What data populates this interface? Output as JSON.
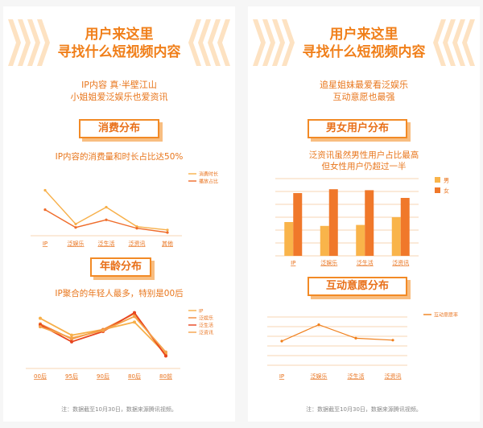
{
  "left": {
    "headline_1": "用户来这里",
    "headline_2": "寻找什么短视频内容",
    "subtitle_1": "IP内容 真·半壁江山",
    "subtitle_2": "小姐姐爱泛娱乐也爱资讯",
    "consumption": {
      "section_title": "消费分布",
      "caption": "IP内容的消费量和时长占比达50%"
    },
    "age": {
      "section_title": "年龄分布",
      "caption": "IP聚合的年轻人最多，特别是00后"
    },
    "note": "注：数据截至10月30日，数据来源腾讯视频。"
  },
  "right": {
    "headline_1": "用户来这里",
    "headline_2": "寻找什么短视频内容",
    "subtitle_1": "追星姐妹最爱看泛娱乐",
    "subtitle_2": "互动意愿也最强",
    "gender": {
      "section_title": "男女用户分布",
      "caption_1": "泛资讯虽然男性用户占比最高",
      "caption_2": "但女性用户仍超过一半"
    },
    "interaction": {
      "section_title": "互动意愿分布"
    },
    "note": "注：数据截至10月30日，数据来源腾讯视频。"
  },
  "colors": {
    "accent": "#f07f1a",
    "light_orange": "#f7b04a",
    "dark_orange": "#ef6c2a",
    "red_orange": "#e8451f"
  },
  "chart_data": [
    {
      "type": "line",
      "categories": [
        "IP",
        "泛娱乐",
        "泛生活",
        "泛资讯",
        "其他"
      ],
      "series": [
        {
          "name": "消费时长",
          "color": "#f7b04a",
          "values": [
            50,
            10,
            30,
            7,
            3
          ]
        },
        {
          "name": "播放占比",
          "color": "#ef6c2a",
          "values": [
            27,
            6,
            15,
            5,
            0
          ]
        }
      ],
      "ylim": [
        0,
        60
      ],
      "legend": "top-right"
    },
    {
      "type": "line",
      "categories": [
        "00后",
        "95后",
        "90后",
        "80后",
        "80前"
      ],
      "series": [
        {
          "name": "IP",
          "color": "#f7b04a",
          "values": [
            50,
            32,
            38,
            46,
            12
          ]
        },
        {
          "name": "泛娱乐",
          "color": "#f28a3a",
          "values": [
            44,
            28,
            38,
            55,
            10
          ]
        },
        {
          "name": "泛生活",
          "color": "#e8451f",
          "values": [
            43,
            25,
            36,
            56,
            10
          ]
        },
        {
          "name": "泛资讯",
          "color": "#f4a24a",
          "values": [
            41,
            29,
            37,
            52,
            14
          ]
        }
      ],
      "ylim": [
        0,
        60
      ],
      "legend": "right"
    },
    {
      "type": "bar",
      "categories": [
        "IP",
        "泛娱乐",
        "泛生活",
        "泛资讯"
      ],
      "series": [
        {
          "name": "男",
          "color": "#f9b44a",
          "values": [
            35,
            31,
            32,
            40
          ]
        },
        {
          "name": "女",
          "color": "#f0782a",
          "values": [
            65,
            69,
            68,
            60
          ]
        }
      ],
      "ylim": [
        0,
        80
      ],
      "grid": true,
      "legend": "right"
    },
    {
      "type": "line",
      "categories": [
        "IP",
        "泛娱乐",
        "泛生活",
        "泛资讯"
      ],
      "series": [
        {
          "name": "互动意愿率",
          "color": "#f07f1a",
          "values": [
            25,
            42,
            28,
            26
          ]
        }
      ],
      "ylim": [
        0,
        50
      ],
      "grid": true,
      "legend": "top-right"
    }
  ]
}
